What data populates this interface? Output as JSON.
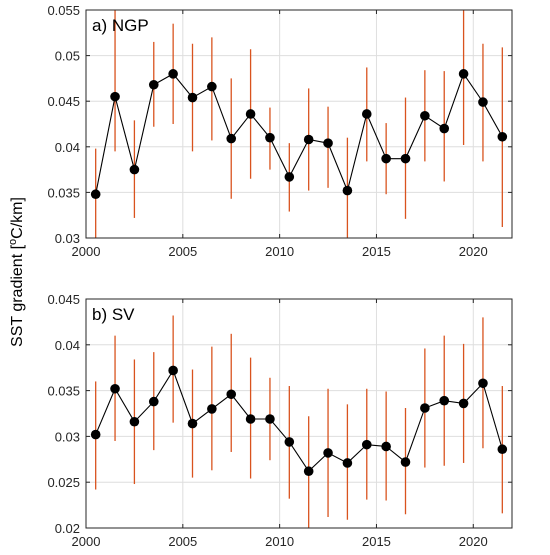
{
  "figure": {
    "ylabel_main": "SST gradient [",
    "ylabel_sup": "o",
    "ylabel_unit": "C/km]"
  },
  "colors": {
    "line": "#000000",
    "marker": "#000000",
    "errorbar": "#d9531e",
    "grid": "#dedede",
    "axes": "#262626",
    "background": "#ffffff"
  },
  "chart_data": [
    {
      "type": "line",
      "panel_label": "a) NGP",
      "x": [
        2000.5,
        2001.5,
        2002.5,
        2003.5,
        2004.5,
        2005.5,
        2006.5,
        2007.5,
        2008.5,
        2009.5,
        2010.5,
        2011.5,
        2012.5,
        2013.5,
        2014.5,
        2015.5,
        2016.5,
        2017.5,
        2018.5,
        2019.5,
        2020.5,
        2021.5
      ],
      "series": [
        {
          "values": [
            0.0348,
            0.0455,
            0.0375,
            0.0468,
            0.048,
            0.0454,
            0.0466,
            0.0409,
            0.0436,
            0.041,
            0.0367,
            0.0408,
            0.0404,
            0.0352,
            0.0436,
            0.0387,
            0.0387,
            0.0434,
            0.042,
            0.048,
            0.0449,
            0.0411
          ],
          "err_low": [
            0.03,
            0.0395,
            0.0322,
            0.0422,
            0.0425,
            0.0395,
            0.0407,
            0.0343,
            0.0365,
            0.0375,
            0.0329,
            0.0352,
            0.0355,
            0.03,
            0.0384,
            0.0348,
            0.0321,
            0.0384,
            0.0362,
            0.0402,
            0.0384,
            0.0312
          ],
          "err_high": [
            0.0398,
            0.055,
            0.0429,
            0.0515,
            0.0535,
            0.0513,
            0.052,
            0.0475,
            0.0507,
            0.0443,
            0.0404,
            0.0464,
            0.0444,
            0.041,
            0.0487,
            0.0426,
            0.0454,
            0.0484,
            0.0483,
            0.055,
            0.0513,
            0.0509
          ]
        }
      ],
      "xlim": [
        2000,
        2022
      ],
      "ylim": [
        0.03,
        0.055
      ],
      "xticks": [
        "2000",
        "2005",
        "2010",
        "2015",
        "2020"
      ],
      "yticks": [
        "0.03",
        "0.035",
        "0.04",
        "0.045",
        "0.05",
        "0.055"
      ],
      "grid": true
    },
    {
      "type": "line",
      "panel_label": "b) SV",
      "x": [
        2000.5,
        2001.5,
        2002.5,
        2003.5,
        2004.5,
        2005.5,
        2006.5,
        2007.5,
        2008.5,
        2009.5,
        2010.5,
        2011.5,
        2012.5,
        2013.5,
        2014.5,
        2015.5,
        2016.5,
        2017.5,
        2018.5,
        2019.5,
        2020.5,
        2021.5
      ],
      "series": [
        {
          "values": [
            0.0302,
            0.0352,
            0.0316,
            0.0338,
            0.0372,
            0.0314,
            0.033,
            0.0346,
            0.0319,
            0.0319,
            0.0294,
            0.0262,
            0.0282,
            0.0271,
            0.0291,
            0.0289,
            0.0272,
            0.0331,
            0.0339,
            0.0336,
            0.0358,
            0.0286
          ],
          "err_low": [
            0.0242,
            0.0295,
            0.0248,
            0.0285,
            0.0315,
            0.0255,
            0.0263,
            0.0283,
            0.0254,
            0.0274,
            0.0232,
            0.02,
            0.0212,
            0.0209,
            0.0231,
            0.023,
            0.0215,
            0.0266,
            0.0268,
            0.0271,
            0.0287,
            0.0216
          ],
          "err_high": [
            0.036,
            0.041,
            0.0384,
            0.0392,
            0.0432,
            0.0373,
            0.0398,
            0.0412,
            0.0386,
            0.0364,
            0.0355,
            0.0322,
            0.0352,
            0.0335,
            0.0352,
            0.0349,
            0.0331,
            0.0396,
            0.041,
            0.0401,
            0.043,
            0.0355
          ]
        }
      ],
      "xlim": [
        2000,
        2022
      ],
      "ylim": [
        0.02,
        0.045
      ],
      "xticks": [
        "2000",
        "2005",
        "2010",
        "2015",
        "2020"
      ],
      "yticks": [
        "0.02",
        "0.025",
        "0.03",
        "0.035",
        "0.04",
        "0.045"
      ],
      "grid": true
    }
  ]
}
